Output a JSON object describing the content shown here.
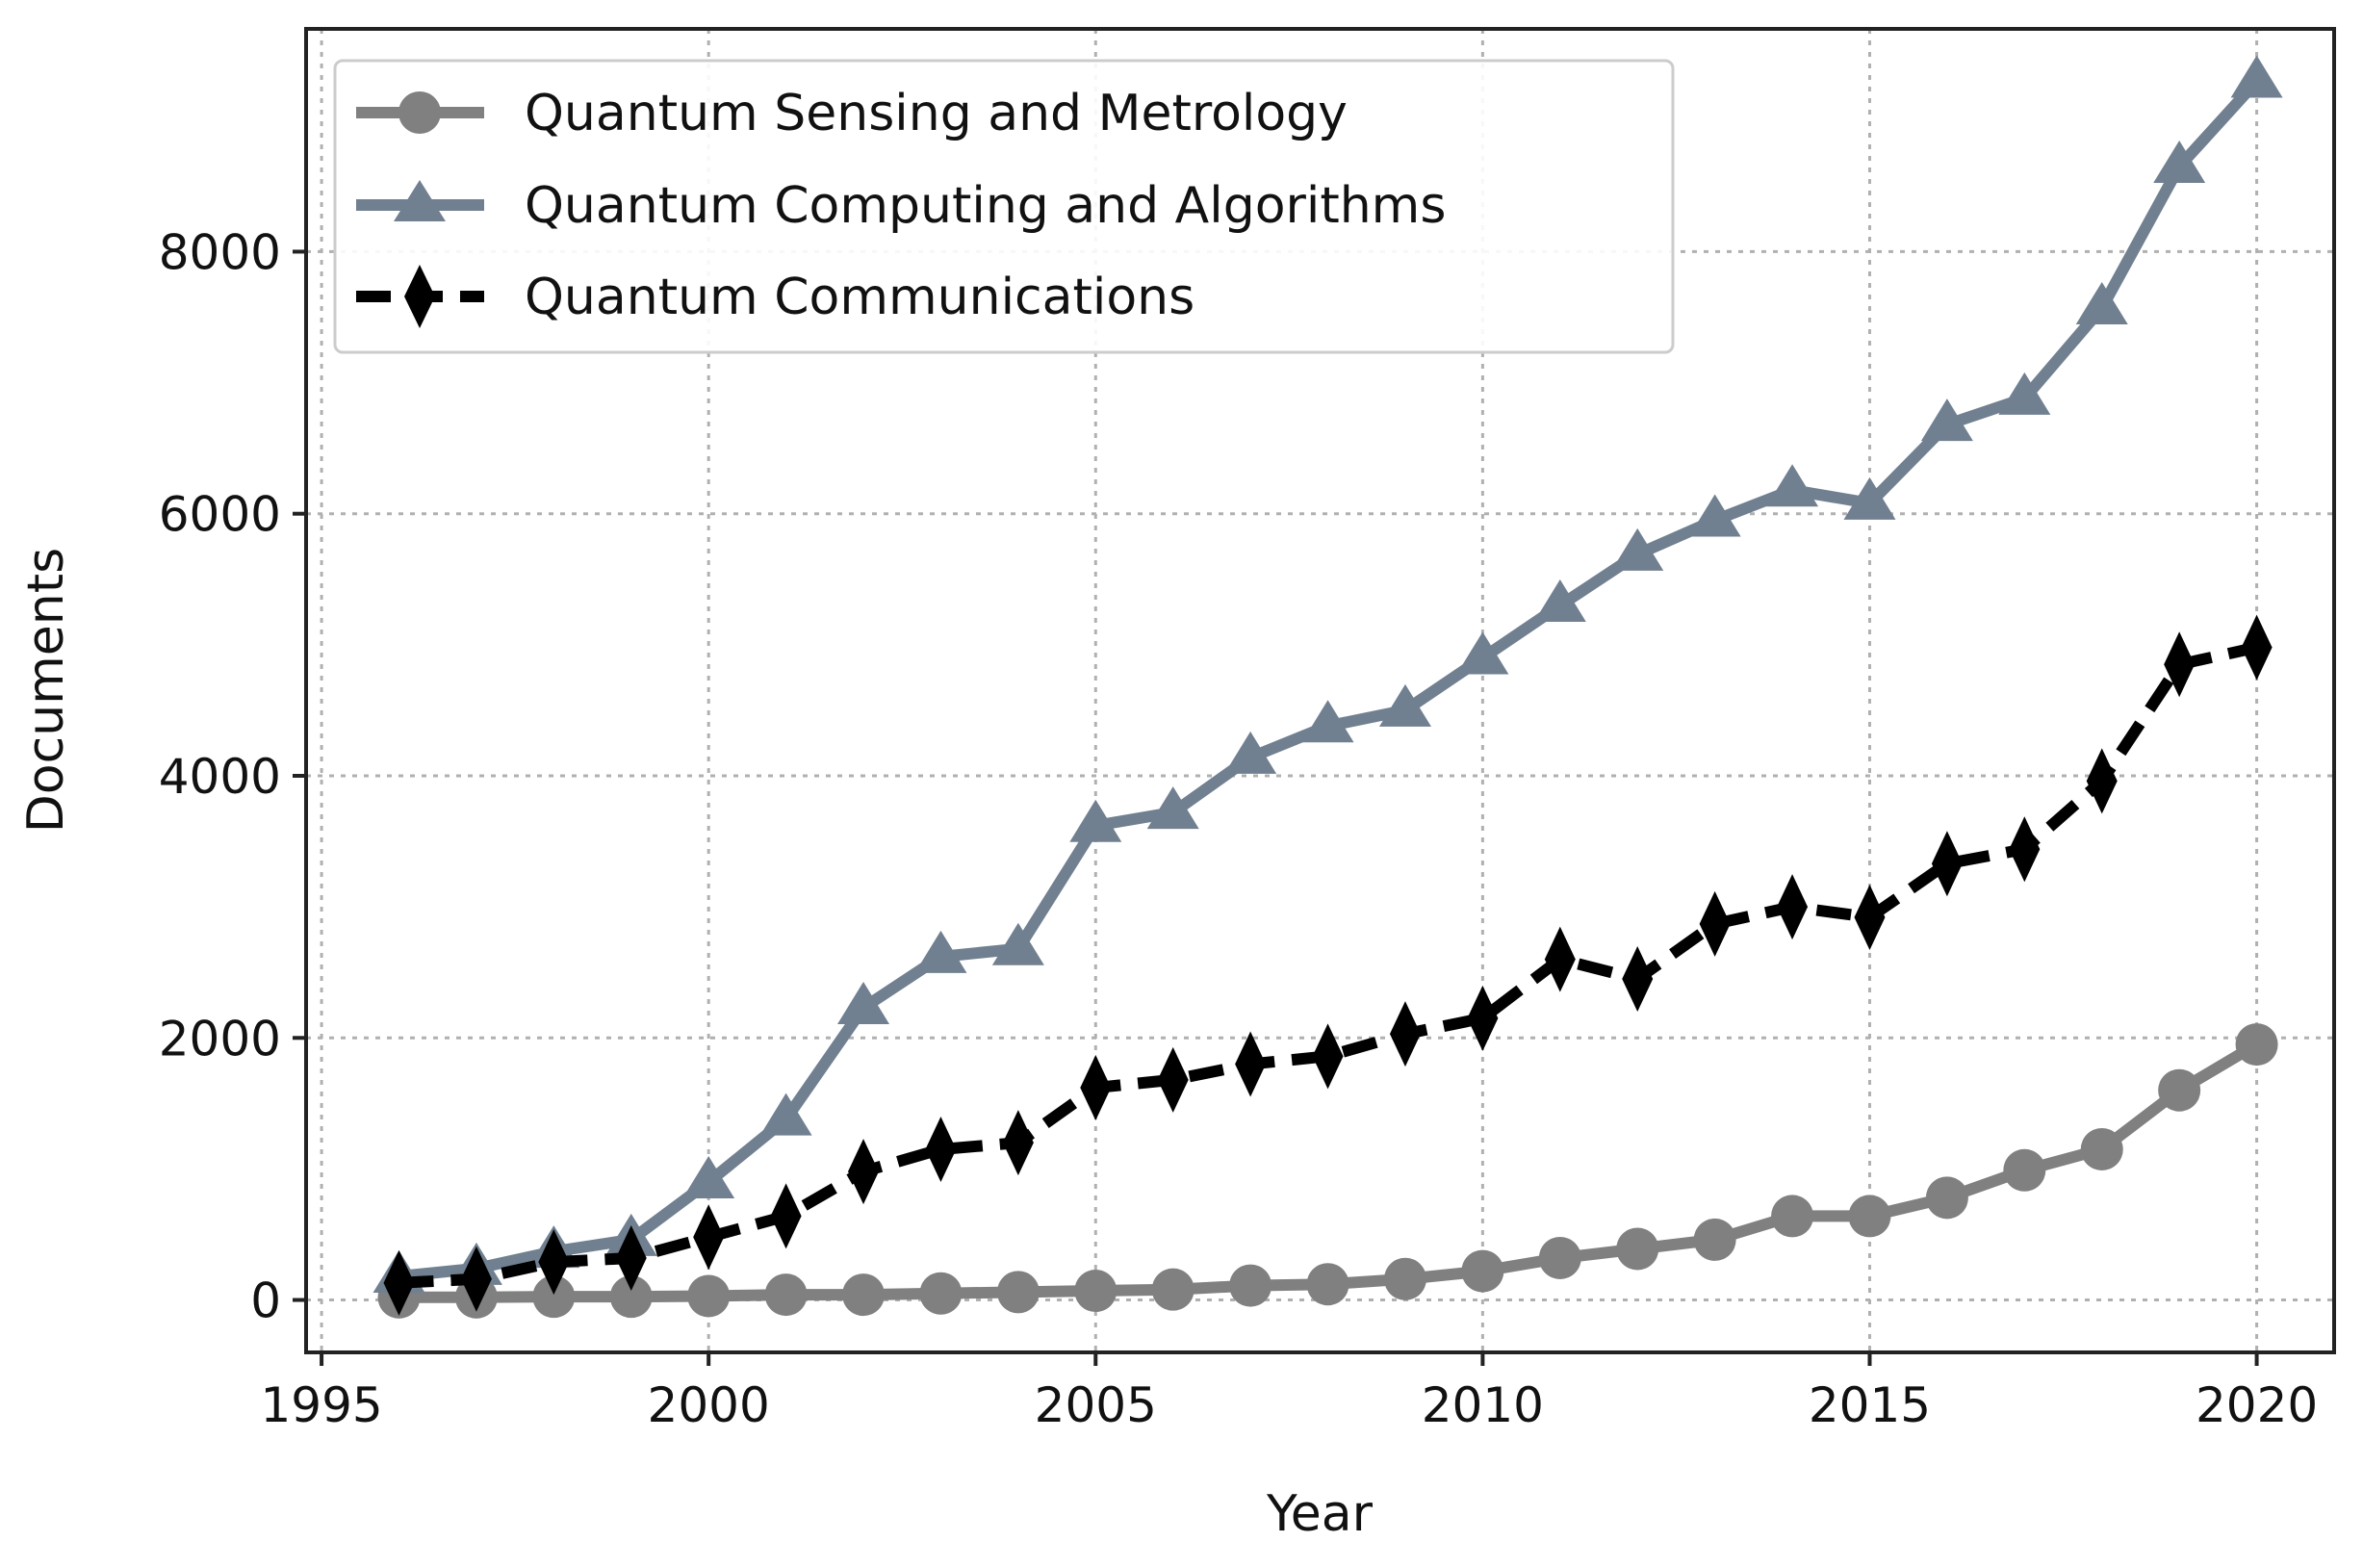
{
  "chart_data": {
    "type": "line",
    "title": "",
    "xlabel": "Year",
    "ylabel": "Documents",
    "xlim": [
      1994.8,
      2021.0
    ],
    "ylim": [
      -400,
      9700
    ],
    "xticks": [
      1995,
      2000,
      2005,
      2010,
      2015,
      2020
    ],
    "yticks": [
      0,
      2000,
      4000,
      6000,
      8000
    ],
    "grid": true,
    "legend_position": "top-left",
    "x": [
      1996,
      1997,
      1998,
      1999,
      2000,
      2001,
      2002,
      2003,
      2004,
      2005,
      2006,
      2007,
      2008,
      2009,
      2010,
      2011,
      2012,
      2013,
      2014,
      2015,
      2016,
      2017,
      2018,
      2019,
      2020
    ],
    "series": [
      {
        "name": "Quantum Sensing and Metrology",
        "color": "#808080",
        "marker": "circle",
        "linestyle": "solid",
        "values": [
          20,
          20,
          25,
          25,
          30,
          40,
          40,
          50,
          60,
          70,
          80,
          110,
          120,
          160,
          220,
          320,
          390,
          460,
          640,
          640,
          780,
          990,
          1150,
          1600,
          1950
        ]
      },
      {
        "name": "Quantum Computing and Algorithms",
        "color": "#708090",
        "marker": "triangle",
        "linestyle": "solid",
        "values": [
          180,
          240,
          370,
          460,
          900,
          1380,
          2230,
          2620,
          2680,
          3620,
          3720,
          4140,
          4380,
          4500,
          4900,
          5300,
          5690,
          5950,
          6180,
          6080,
          6680,
          6880,
          7570,
          8650,
          9300
        ]
      },
      {
        "name": "Quantum Communications",
        "color": "#000000",
        "marker": "diamond",
        "linestyle": "dashed",
        "values": [
          130,
          160,
          290,
          320,
          480,
          640,
          980,
          1150,
          1200,
          1620,
          1680,
          1800,
          1860,
          2030,
          2150,
          2600,
          2450,
          2870,
          3000,
          2920,
          3330,
          3440,
          3960,
          4850,
          4980
        ]
      }
    ]
  }
}
